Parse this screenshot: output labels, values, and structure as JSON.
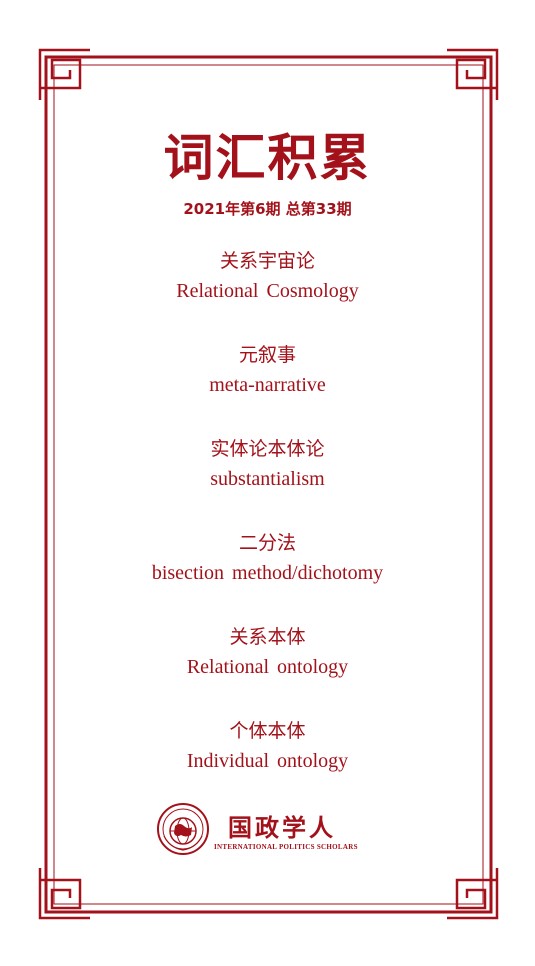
{
  "title": "词汇积累",
  "issue": "2021年第6期  总第33期",
  "terms": [
    {
      "zh": "关系宇宙论",
      "en": "Relational Cosmology"
    },
    {
      "zh": "元叙事",
      "en": "meta-narrative"
    },
    {
      "zh": "实体论本体论",
      "en": "substantialism"
    },
    {
      "zh": "二分法",
      "en": "bisection method/dichotomy"
    },
    {
      "zh": "关系本体",
      "en": "Relational ontology"
    },
    {
      "zh": "个体本体",
      "en": "Individual ontology"
    }
  ],
  "logo": {
    "name": "国政学人",
    "subtitle": "INTERNATIONAL POLITICS SCHOLARS",
    "seal_text": "国政学人"
  },
  "colors": {
    "accent": "#a3121a",
    "background": "#ffffff"
  }
}
